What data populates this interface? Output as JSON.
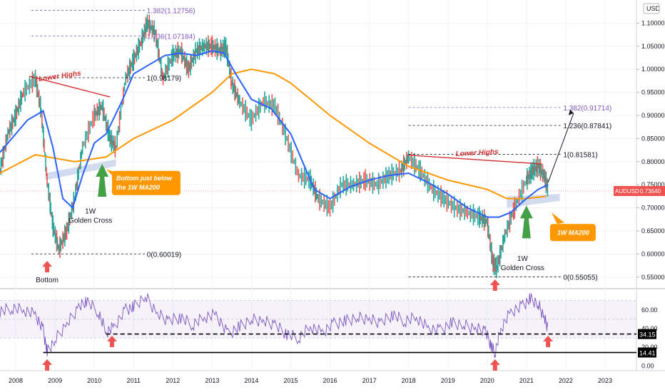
{
  "chart_data": [
    {
      "type": "line",
      "symbol": "AUDUSD",
      "interval": "1W",
      "xlim": [
        2007.6,
        2023.8
      ],
      "ylim": [
        0.525,
        1.15
      ],
      "x_ticks": [
        "2008",
        "2009",
        "2010",
        "2011",
        "2012",
        "2013",
        "2014",
        "2015",
        "2016",
        "2017",
        "2018",
        "2019",
        "2020",
        "2021",
        "2022",
        "2023"
      ],
      "y_ticks": [
        "1.10000",
        "1.05000",
        "1.00000",
        "0.95000",
        "0.90000",
        "0.85000",
        "0.80000",
        "0.75000",
        "0.70000",
        "0.65000",
        "0.60000",
        "0.55000"
      ],
      "currency_label": "USD",
      "last_price": {
        "label": "AUDUSD",
        "value": "0.73640",
        "y": 0.7364,
        "color": "#f05350"
      },
      "series": [
        {
          "color": "#2962ff",
          "x": [
            2007.6,
            2008.3,
            2008.7,
            2008.95,
            2009.2,
            2009.45,
            2009.7,
            2010.0,
            2010.3,
            2010.7,
            2011.0,
            2011.4,
            2011.8,
            2012.2,
            2012.6,
            2013.0,
            2013.3,
            2013.6,
            2014.0,
            2014.5,
            2015.0,
            2015.3,
            2015.6,
            2016.0,
            2016.5,
            2017.0,
            2017.5,
            2018.0,
            2018.5,
            2019.0,
            2019.5,
            2020.0,
            2020.3,
            2020.6,
            2021.0,
            2021.3,
            2021.55
          ],
          "values": [
            0.82,
            0.89,
            0.91,
            0.83,
            0.72,
            0.7,
            0.77,
            0.84,
            0.86,
            0.93,
            0.99,
            1.01,
            1.03,
            1.035,
            1.03,
            1.04,
            1.035,
            0.99,
            0.935,
            0.915,
            0.86,
            0.8,
            0.74,
            0.72,
            0.745,
            0.76,
            0.77,
            0.775,
            0.755,
            0.73,
            0.7,
            0.68,
            0.68,
            0.69,
            0.72,
            0.74,
            0.75
          ]
        },
        {
          "color": "#ff9800",
          "x": [
            2007.6,
            2008.5,
            2009.5,
            2010.3,
            2011.0,
            2012.0,
            2013.0,
            2013.5,
            2014.0,
            2014.6,
            2015.0,
            2016.0,
            2017.0,
            2018.0,
            2019.0,
            2020.0,
            2020.5,
            2021.0,
            2021.5
          ],
          "values": [
            0.775,
            0.815,
            0.8,
            0.81,
            0.85,
            0.89,
            0.95,
            0.99,
            1.0,
            0.99,
            0.97,
            0.9,
            0.84,
            0.79,
            0.76,
            0.74,
            0.72,
            0.72,
            0.725
          ]
        },
        {
          "color": "#26a69a",
          "x": [
            2007.6,
            2007.8,
            2008.0,
            2008.2,
            2008.5,
            2008.65,
            2008.8,
            2008.95,
            2009.1,
            2009.3,
            2009.5,
            2009.7,
            2010.0,
            2010.2,
            2010.4,
            2010.55,
            2010.8,
            2011.0,
            2011.2,
            2011.35,
            2011.55,
            2011.75,
            2012.0,
            2012.2,
            2012.4,
            2012.6,
            2012.8,
            2013.0,
            2013.2,
            2013.35,
            2013.5,
            2013.7,
            2014.0,
            2014.3,
            2014.6,
            2014.9,
            2015.2,
            2015.5,
            2015.7,
            2016.0,
            2016.3,
            2016.6,
            2016.9,
            2017.2,
            2017.5,
            2017.8,
            2018.0,
            2018.3,
            2018.6,
            2018.9,
            2019.2,
            2019.5,
            2019.8,
            2020.0,
            2020.15,
            2020.25,
            2020.45,
            2020.7,
            2021.0,
            2021.15,
            2021.3,
            2021.45,
            2021.55
          ],
          "values": [
            0.78,
            0.86,
            0.9,
            0.95,
            0.98,
            0.91,
            0.76,
            0.66,
            0.61,
            0.65,
            0.72,
            0.83,
            0.9,
            0.92,
            0.85,
            0.83,
            0.98,
            1.02,
            1.06,
            1.1,
            1.08,
            0.98,
            1.03,
            1.04,
            1.0,
            1.04,
            1.05,
            1.05,
            1.04,
            1.05,
            0.97,
            0.93,
            0.89,
            0.93,
            0.92,
            0.85,
            0.77,
            0.76,
            0.72,
            0.7,
            0.75,
            0.75,
            0.76,
            0.75,
            0.77,
            0.78,
            0.81,
            0.78,
            0.74,
            0.72,
            0.7,
            0.69,
            0.68,
            0.67,
            0.58,
            0.57,
            0.64,
            0.7,
            0.76,
            0.78,
            0.79,
            0.77,
            0.74
          ]
        }
      ],
      "fib_left": {
        "color": "#131722",
        "levels": [
          {
            "label": "1.382(1.12756)",
            "y": 1.12756,
            "color": "#7e57c2"
          },
          {
            "label": "1.236(1.07184)",
            "y": 1.07184,
            "color": "#7e57c2"
          },
          {
            "label": "1(0.98179)",
            "y": 0.98179,
            "color": "#131722"
          },
          {
            "label": "0(0.60019)",
            "y": 0.60019,
            "color": "#131722"
          }
        ]
      },
      "fib_right": {
        "levels": [
          {
            "label": "1.382(0.91714)",
            "y": 0.91714,
            "color": "#7e57c2"
          },
          {
            "label": "1.236(0.87841)",
            "y": 0.87841,
            "color": "#131722"
          },
          {
            "label": "1(0.81581)",
            "y": 0.81581,
            "color": "#131722"
          },
          {
            "label": "0(0.55055)",
            "y": 0.55055,
            "color": "#131722"
          }
        ]
      },
      "annotations": {
        "lower_highs": "Lower Highs",
        "golden_cross_1": "1W",
        "golden_cross_2": "Golden Cross",
        "bottom": "Bottom",
        "callout_left_1": "Bottom just below",
        "callout_left_2": "the 1W MA200",
        "callout_right": "1W MA200",
        "red": "#d32f2f",
        "orange": "#ff9800",
        "green": "#43a047"
      }
    },
    {
      "type": "line",
      "indicator": "RSI",
      "ylim": [
        -5,
        82
      ],
      "y_ticks": [
        "60.00",
        "40.00",
        "20.00",
        "0.00"
      ],
      "band": [
        30,
        70
      ],
      "line_color": "#7e57c2",
      "levels": [
        {
          "value": 34.15,
          "label": "34.15",
          "style": "dashed"
        },
        {
          "value": 14.41,
          "label": "14.41",
          "style": "solid"
        }
      ],
      "x": [
        2007.6,
        2007.9,
        2008.2,
        2008.5,
        2008.7,
        2008.8,
        2009.0,
        2009.3,
        2009.6,
        2009.8,
        2010.1,
        2010.3,
        2010.5,
        2010.8,
        2011.0,
        2011.3,
        2011.6,
        2011.9,
        2012.2,
        2012.5,
        2012.8,
        2013.1,
        2013.4,
        2013.7,
        2014.0,
        2014.3,
        2014.6,
        2014.9,
        2015.2,
        2015.5,
        2015.8,
        2016.1,
        2016.4,
        2016.7,
        2017.0,
        2017.3,
        2017.6,
        2017.9,
        2018.2,
        2018.5,
        2018.8,
        2019.1,
        2019.4,
        2019.7,
        2019.95,
        2020.1,
        2020.2,
        2020.35,
        2020.6,
        2020.9,
        2021.1,
        2021.3,
        2021.45,
        2021.55
      ],
      "values": [
        58,
        62,
        60,
        55,
        38,
        15,
        28,
        45,
        62,
        70,
        58,
        36,
        42,
        60,
        63,
        75,
        56,
        48,
        52,
        44,
        52,
        55,
        34,
        42,
        50,
        48,
        44,
        34,
        30,
        42,
        36,
        45,
        48,
        52,
        50,
        46,
        55,
        48,
        52,
        40,
        38,
        46,
        44,
        40,
        38,
        22,
        14,
        40,
        58,
        64,
        72,
        66,
        52,
        40
      ]
    }
  ]
}
